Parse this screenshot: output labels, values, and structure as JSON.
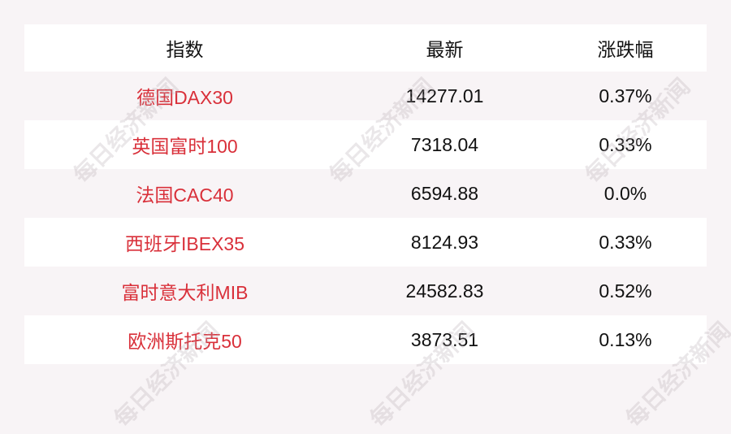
{
  "watermark": "每日经济新闻",
  "colors": {
    "name_text": "#d9303a",
    "background": "#f8f4f6",
    "alt_row": "#ffffff"
  },
  "header": {
    "name": "指数",
    "latest": "最新",
    "change": "涨跌幅"
  },
  "rows": [
    {
      "name": "德国DAX30",
      "latest": "14277.01",
      "change": "0.37%"
    },
    {
      "name": "英国富时100",
      "latest": "7318.04",
      "change": "0.33%"
    },
    {
      "name": "法国CAC40",
      "latest": "6594.88",
      "change": "0.0%"
    },
    {
      "name": "西班牙IBEX35",
      "latest": "8124.93",
      "change": "0.33%"
    },
    {
      "name": "富时意大利MIB",
      "latest": "24582.83",
      "change": "0.52%"
    },
    {
      "name": "欧洲斯托克50",
      "latest": "3873.51",
      "change": "0.13%"
    }
  ]
}
